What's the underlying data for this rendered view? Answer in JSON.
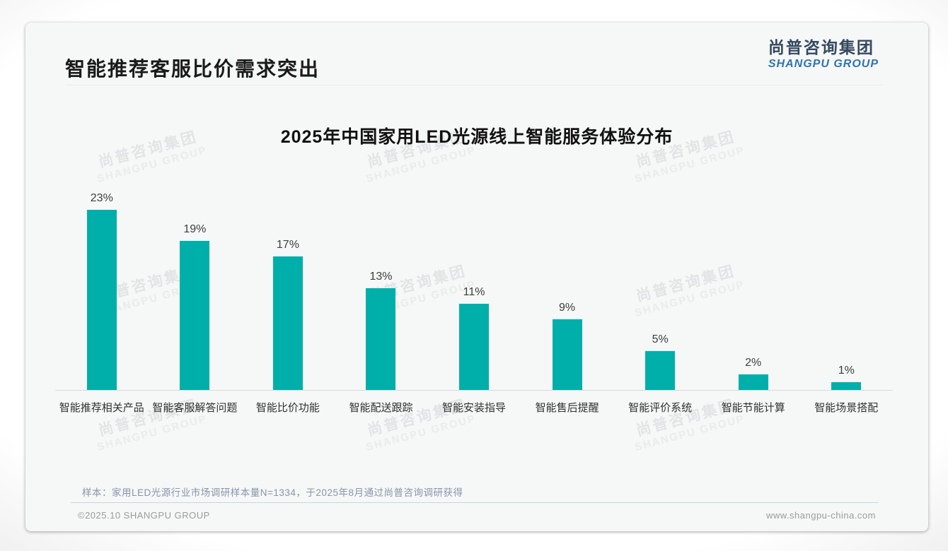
{
  "page": {
    "title": "智能推荐客服比价需求突出",
    "logo": {
      "cn": "尚普咨询集团",
      "en": "SHANGPU GROUP"
    },
    "watermark": {
      "cn": "尚普咨询集团",
      "en": "SHANGPU GROUP"
    },
    "note": "样本：家用LED光源行业市场调研样本量N=1334，于2025年8月通过尚普咨询调研获得",
    "footer_left": "©2025.10 SHANGPU GROUP",
    "footer_right": "www.shangpu-china.com"
  },
  "chart_data": {
    "type": "bar",
    "title": "2025年中国家用LED光源线上智能服务体验分布",
    "categories": [
      "智能推荐相关产品",
      "智能客服解答问题",
      "智能比价功能",
      "智能配送跟踪",
      "智能安装指导",
      "智能售后提醒",
      "智能评价系统",
      "智能节能计算",
      "智能场景搭配"
    ],
    "values": [
      23,
      19,
      17,
      13,
      11,
      9,
      5,
      2,
      1
    ],
    "value_labels": [
      "23%",
      "19%",
      "17%",
      "13%",
      "11%",
      "9%",
      "5%",
      "2%",
      "1%"
    ],
    "bar_color": "#00AFA9",
    "xlabel": "",
    "ylabel": "",
    "ylim": [
      0,
      25
    ],
    "grid": false,
    "legend": "none",
    "value_labels_position": "above-bars"
  }
}
